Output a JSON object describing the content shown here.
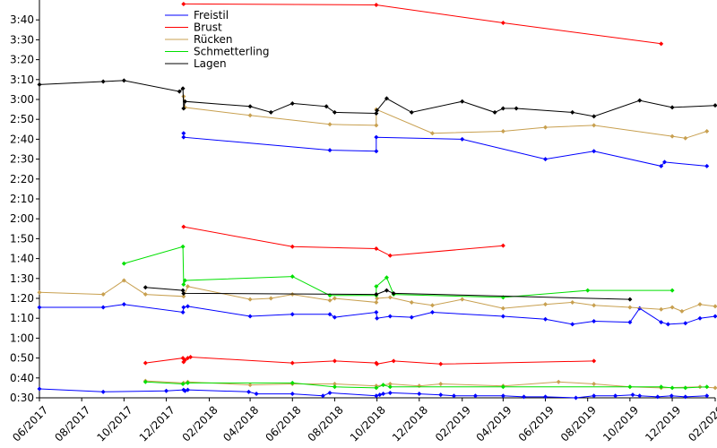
{
  "chart_data": {
    "type": "line",
    "title": "",
    "xlabel": "",
    "ylabel": "",
    "x_range": [
      "2017-06",
      "2020-02"
    ],
    "y_range": [
      "0:30",
      "3:50"
    ],
    "x_ticks": [
      "06/2017",
      "08/2017",
      "10/2017",
      "12/2017",
      "02/2018",
      "04/2018",
      "06/2018",
      "08/2018",
      "10/2018",
      "12/2018",
      "02/2019",
      "04/2019",
      "06/2019",
      "08/2019",
      "10/2019",
      "12/2019",
      "02/2020"
    ],
    "y_ticks": [
      "0:30",
      "0:40",
      "0:50",
      "1:00",
      "1:10",
      "1:20",
      "1:30",
      "1:40",
      "1:50",
      "2:00",
      "2:10",
      "2:20",
      "2:30",
      "2:40",
      "2:50",
      "3:00",
      "3:10",
      "3:20",
      "3:30",
      "3:40"
    ],
    "legend": [
      "Freistil",
      "Brust",
      "Rücken",
      "Schmetterling",
      "Lagen"
    ],
    "colors": [
      "#0000ff",
      "#ff0000",
      "#c8a050",
      "#00e000",
      "#000000"
    ],
    "series": [
      {
        "name": "Freistil",
        "color": "#0000ff",
        "lines": [
          [
            [
              "2017-06-01",
              "0:34.5"
            ],
            [
              "2017-09-01",
              "0:33.0"
            ],
            [
              "2017-12-01",
              "0:33.5"
            ],
            [
              "2017-12-26",
              "0:34.0"
            ],
            [
              "2017-12-28",
              "0:33.5"
            ],
            [
              "2018-01-01",
              "0:34.0"
            ],
            [
              "2018-03-30",
              "0:33.0"
            ],
            [
              "2018-04-10",
              "0:32.0"
            ],
            [
              "2018-06-01",
              "0:32.0"
            ],
            [
              "2018-07-15",
              "0:31.0"
            ],
            [
              "2018-07-25",
              "0:32.5"
            ],
            [
              "2018-09-30",
              "0:31.0"
            ],
            [
              "2018-10-05",
              "0:31.5"
            ],
            [
              "2018-10-10",
              "0:32.0"
            ],
            [
              "2018-10-20",
              "0:32.5"
            ],
            [
              "2018-12-01",
              "0:32.0"
            ],
            [
              "2019-01-01",
              "0:31.5"
            ],
            [
              "2019-01-20",
              "0:31.0"
            ],
            [
              "2019-02-20",
              "0:31.0"
            ],
            [
              "2019-04-01",
              "0:31.0"
            ],
            [
              "2019-05-01",
              "0:30.5"
            ],
            [
              "2019-06-01",
              "0:30.5"
            ],
            [
              "2019-07-15",
              "0:30.0"
            ],
            [
              "2019-08-10",
              "0:31.0"
            ],
            [
              "2019-09-10",
              "0:31.0"
            ],
            [
              "2019-10-05",
              "0:31.5"
            ],
            [
              "2019-10-15",
              "0:31.0"
            ],
            [
              "2019-11-10",
              "0:30.5"
            ],
            [
              "2019-11-30",
              "0:31.0"
            ],
            [
              "2019-12-20",
              "0:30.5"
            ],
            [
              "2020-01-20",
              "0:31.0"
            ]
          ],
          [
            [
              "2017-06-01",
              "1:15.5"
            ],
            [
              "2017-09-01",
              "1:15.5"
            ],
            [
              "2017-10-01",
              "1:17.0"
            ],
            [
              "2017-12-25",
              "1:13.0"
            ],
            [
              "2017-12-26",
              "1:15.5"
            ],
            [
              "2018-01-01",
              "1:16.0"
            ],
            [
              "2018-04-01",
              "1:11.0"
            ],
            [
              "2018-06-01",
              "1:12.0"
            ],
            [
              "2018-07-25",
              "1:12.0"
            ],
            [
              "2018-08-01",
              "1:10.5"
            ],
            [
              "2018-09-30",
              "1:13.0"
            ],
            [
              "2018-10-01",
              "1:10.0"
            ],
            [
              "2018-10-20",
              "1:11.0"
            ],
            [
              "2018-11-20",
              "1:10.5"
            ],
            [
              "2018-12-20",
              "1:13.0"
            ],
            [
              "2019-04-01",
              "1:11.0"
            ],
            [
              "2019-06-01",
              "1:09.5"
            ],
            [
              "2019-07-10",
              "1:07.0"
            ],
            [
              "2019-08-10",
              "1:08.5"
            ],
            [
              "2019-10-01",
              "1:08.0"
            ],
            [
              "2019-10-15",
              "1:15.0"
            ],
            [
              "2019-11-15",
              "1:08.0"
            ],
            [
              "2019-11-25",
              "1:07.0"
            ],
            [
              "2019-12-20",
              "1:07.5"
            ],
            [
              "2020-01-10",
              "1:10.0"
            ],
            [
              "2020-02-01",
              "1:11.0"
            ]
          ],
          [
            [
              "2017-12-26",
              "2:43.0"
            ],
            [
              "2017-12-26",
              "2:41.0"
            ],
            [
              "2018-07-25",
              "2:34.5"
            ],
            [
              "2018-09-30",
              "2:34.0"
            ],
            [
              "2018-09-30",
              "2:41.0"
            ],
            [
              "2019-02-01",
              "2:40.0"
            ],
            [
              "2019-06-01",
              "2:30.0"
            ],
            [
              "2019-08-10",
              "2:34.0"
            ],
            [
              "2019-11-15",
              "2:26.5"
            ],
            [
              "2019-11-20",
              "2:28.5"
            ],
            [
              "2020-01-20",
              "2:26.5"
            ]
          ]
        ]
      },
      {
        "name": "Brust",
        "color": "#ff0000",
        "lines": [
          [
            [
              "2017-11-01",
              "0:47.5"
            ],
            [
              "2017-12-25",
              "0:50.0"
            ],
            [
              "2017-12-26",
              "0:48.0"
            ],
            [
              "2017-12-28",
              "0:49.0"
            ],
            [
              "2018-01-01",
              "0:50.0"
            ],
            [
              "2018-01-05",
              "0:50.5"
            ],
            [
              "2018-06-01",
              "0:47.5"
            ],
            [
              "2018-08-01",
              "0:48.5"
            ],
            [
              "2018-09-30",
              "0:47.5"
            ],
            [
              "2018-10-01",
              "0:47.0"
            ],
            [
              "2018-10-25",
              "0:48.5"
            ],
            [
              "2019-01-01",
              "0:47.0"
            ],
            [
              "2019-08-10",
              "0:48.5"
            ]
          ],
          [
            [
              "2017-12-26",
              "1:56.0"
            ],
            [
              "2018-06-01",
              "1:46.0"
            ],
            [
              "2018-09-30",
              "1:45.0"
            ],
            [
              "2018-10-20",
              "1:41.5"
            ],
            [
              "2019-04-01",
              "1:46.5"
            ]
          ],
          [
            [
              "2017-12-26",
              "3:48.0"
            ],
            [
              "2018-09-30",
              "3:47.5"
            ],
            [
              "2019-04-01",
              "3:38.5"
            ],
            [
              "2019-11-15",
              "3:28.0"
            ]
          ]
        ]
      },
      {
        "name": "Rücken",
        "color": "#c8a050",
        "lines": [
          [
            [
              "2017-11-01",
              "0:38.5"
            ],
            [
              "2017-12-26",
              "0:37.5"
            ],
            [
              "2018-01-01",
              "0:38.0"
            ],
            [
              "2018-04-01",
              "0:36.5"
            ],
            [
              "2018-06-01",
              "0:37.0"
            ],
            [
              "2018-08-01",
              "0:37.0"
            ],
            [
              "2018-09-30",
              "0:36.0"
            ],
            [
              "2018-10-20",
              "0:37.0"
            ],
            [
              "2018-12-01",
              "0:36.0"
            ],
            [
              "2019-01-01",
              "0:37.0"
            ],
            [
              "2019-04-01",
              "0:36.0"
            ],
            [
              "2019-06-20",
              "0:38.0"
            ],
            [
              "2019-08-10",
              "0:37.0"
            ],
            [
              "2019-10-01",
              "0:35.5"
            ],
            [
              "2019-11-15",
              "0:35.0"
            ],
            [
              "2020-01-10",
              "0:35.5"
            ],
            [
              "2020-02-01",
              "0:35.0"
            ]
          ],
          [
            [
              "2017-06-01",
              "1:23.0"
            ],
            [
              "2017-09-01",
              "1:22.0"
            ],
            [
              "2017-10-01",
              "1:29.0"
            ],
            [
              "2017-11-01",
              "1:22.0"
            ],
            [
              "2017-12-26",
              "1:21.0"
            ],
            [
              "2018-01-01",
              "1:26.0"
            ],
            [
              "2018-04-01",
              "1:19.5"
            ],
            [
              "2018-05-01",
              "1:20.0"
            ],
            [
              "2018-06-01",
              "1:22.0"
            ],
            [
              "2018-07-25",
              "1:19.0"
            ],
            [
              "2018-08-01",
              "1:20.0"
            ],
            [
              "2018-09-30",
              "1:18.0"
            ],
            [
              "2018-10-01",
              "1:20.0"
            ],
            [
              "2018-10-20",
              "1:20.5"
            ],
            [
              "2018-11-20",
              "1:18.0"
            ],
            [
              "2018-12-20",
              "1:16.5"
            ],
            [
              "2019-02-01",
              "1:19.5"
            ],
            [
              "2019-04-01",
              "1:15.0"
            ],
            [
              "2019-06-01",
              "1:17.0"
            ],
            [
              "2019-07-10",
              "1:18.0"
            ],
            [
              "2019-08-10",
              "1:16.5"
            ],
            [
              "2019-10-01",
              "1:15.5"
            ],
            [
              "2019-11-15",
              "1:14.5"
            ],
            [
              "2019-12-01",
              "1:15.5"
            ],
            [
              "2019-12-15",
              "1:13.5"
            ],
            [
              "2020-01-10",
              "1:17.0"
            ],
            [
              "2020-02-01",
              "1:16.0"
            ]
          ],
          [
            [
              "2017-12-26",
              "3:01.5"
            ],
            [
              "2017-12-28",
              "2:56.0"
            ],
            [
              "2018-04-01",
              "2:52.0"
            ],
            [
              "2018-07-25",
              "2:47.5"
            ],
            [
              "2018-09-30",
              "2:47.0"
            ],
            [
              "2018-09-30",
              "2:55.0"
            ],
            [
              "2018-12-20",
              "2:43.0"
            ],
            [
              "2019-04-01",
              "2:44.0"
            ],
            [
              "2019-06-01",
              "2:46.0"
            ],
            [
              "2019-08-10",
              "2:47.0"
            ],
            [
              "2019-12-01",
              "2:41.5"
            ],
            [
              "2019-12-20",
              "2:40.5"
            ],
            [
              "2020-01-20",
              "2:44.0"
            ]
          ]
        ]
      },
      {
        "name": "Schmetterling",
        "color": "#00e000",
        "lines": [
          [
            [
              "2017-11-01",
              "0:38.0"
            ],
            [
              "2017-12-25",
              "0:37.0"
            ],
            [
              "2018-01-01",
              "0:37.5"
            ],
            [
              "2018-06-01",
              "0:37.5"
            ],
            [
              "2018-08-01",
              "0:35.5"
            ],
            [
              "2018-09-30",
              "0:35.0"
            ],
            [
              "2018-10-10",
              "0:36.5"
            ],
            [
              "2018-10-20",
              "0:35.5"
            ],
            [
              "2019-04-01",
              "0:35.5"
            ],
            [
              "2019-10-01",
              "0:35.5"
            ],
            [
              "2019-11-15",
              "0:35.5"
            ],
            [
              "2019-12-01",
              "0:35.0"
            ],
            [
              "2019-12-20",
              "0:35.0"
            ],
            [
              "2020-01-20",
              "0:35.5"
            ]
          ],
          [
            [
              "2017-10-01",
              "1:37.5"
            ],
            [
              "2017-12-25",
              "1:46.0"
            ],
            [
              "2017-12-26",
              "1:27.0"
            ],
            [
              "2017-12-28",
              "1:29.0"
            ],
            [
              "2018-06-01",
              "1:31.0"
            ],
            [
              "2018-07-25",
              "1:21.5"
            ],
            [
              "2018-09-30",
              "1:21.5"
            ],
            [
              "2018-09-30",
              "1:26.0"
            ],
            [
              "2018-10-15",
              "1:30.5"
            ],
            [
              "2018-10-25",
              "1:22.0"
            ],
            [
              "2019-04-01",
              "1:20.5"
            ],
            [
              "2019-08-01",
              "1:24.0"
            ],
            [
              "2019-12-01",
              "1:24.0"
            ]
          ]
        ]
      },
      {
        "name": "Lagen",
        "color": "#000000",
        "lines": [
          [
            [
              "2017-11-01",
              "1:25.5"
            ],
            [
              "2017-12-25",
              "1:24.0"
            ],
            [
              "2017-12-26",
              "1:22.5"
            ],
            [
              "2018-09-30",
              "1:22.0"
            ],
            [
              "2018-10-15",
              "1:24.0"
            ],
            [
              "2018-10-25",
              "1:22.5"
            ],
            [
              "2019-10-01",
              "1:19.5"
            ]
          ],
          [
            [
              "2017-06-01",
              "3:07.5"
            ],
            [
              "2017-09-01",
              "3:09.0"
            ],
            [
              "2017-10-01",
              "3:09.5"
            ],
            [
              "2017-12-20",
              "3:04.0"
            ],
            [
              "2017-12-25",
              "3:05.5"
            ],
            [
              "2017-12-26",
              "2:55.5"
            ],
            [
              "2017-12-28",
              "2:59.0"
            ],
            [
              "2018-04-01",
              "2:56.5"
            ],
            [
              "2018-05-01",
              "2:53.5"
            ],
            [
              "2018-06-01",
              "2:58.0"
            ],
            [
              "2018-07-20",
              "2:56.5"
            ],
            [
              "2018-08-01",
              "2:53.5"
            ],
            [
              "2018-09-30",
              "2:53.0"
            ],
            [
              "2018-10-01",
              "2:54.5"
            ],
            [
              "2018-10-15",
              "3:00.5"
            ],
            [
              "2018-11-20",
              "2:53.5"
            ],
            [
              "2019-02-01",
              "2:59.0"
            ],
            [
              "2019-03-20",
              "2:53.5"
            ],
            [
              "2019-04-01",
              "2:55.5"
            ],
            [
              "2019-04-20",
              "2:55.5"
            ],
            [
              "2019-07-10",
              "2:53.5"
            ],
            [
              "2019-08-10",
              "2:51.5"
            ],
            [
              "2019-10-15",
              "2:59.5"
            ],
            [
              "2019-12-01",
              "2:56.0"
            ],
            [
              "2020-02-01",
              "2:57.0"
            ]
          ]
        ]
      }
    ]
  }
}
